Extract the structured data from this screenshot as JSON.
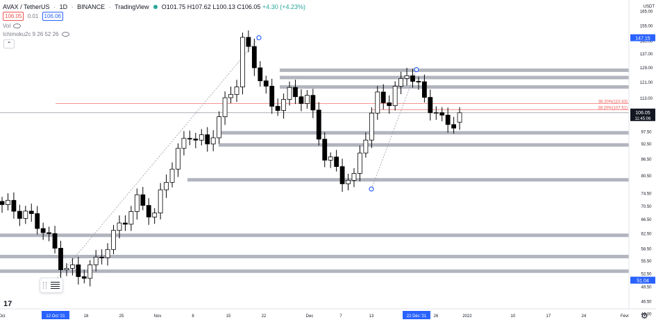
{
  "header": {
    "symbol": "AVAX / TetherUS",
    "interval": "1D",
    "exchange": "BINANCE",
    "source": "TradingView",
    "o_label": "O",
    "o": "101.75",
    "h_label": "H",
    "h": "107.62",
    "l_label": "L",
    "l": "100.13",
    "c_label": "C",
    "c": "106.05",
    "change": "+4.30 (+4.23%)",
    "bid": "106.05",
    "spread": "0.01",
    "ask": "106.06",
    "vol_label": "Vol",
    "indicator": "Ichimoku2c 9 26 52 26"
  },
  "price_axis": {
    "currency_top": "USDT",
    "ticks": [
      "165.00",
      "155.00",
      "145.00",
      "137.00",
      "129.00",
      "121.00",
      "113.00",
      "97.50",
      "92.50",
      "86.50",
      "80.50",
      "74.50",
      "70.50",
      "66.50",
      "62.50",
      "58.50",
      "55.50",
      "52.50",
      "49.50",
      "46.50",
      "44.00",
      "41.60"
    ],
    "label_high": "147.15",
    "label_price": "106.05",
    "label_timer": "11:45:06",
    "label_low": "51.04"
  },
  "time_axis": {
    "ticks": [
      "Oct",
      "12 Oct '21",
      "18",
      "25",
      "Nov",
      "8",
      "15",
      "22",
      "Dec",
      "7",
      "13",
      "22 Déc '21",
      "26",
      "2022",
      "10",
      "17",
      "24",
      "Févr"
    ],
    "highlighted": [
      "12 Oct '21",
      "22 Déc '21"
    ]
  },
  "fib": {
    "label_1": "38.20%(110.43)",
    "label_2": "38.20%(107.51)"
  },
  "colors": {
    "accent": "#2962ff",
    "bear": "#ef5350",
    "bull": "#26a69a",
    "candle": "#000000",
    "zone": "#b2b5be"
  },
  "chart_data": {
    "type": "candlestick",
    "symbol": "AVAX / TetherUS",
    "interval": "1D",
    "approx_ohlc_sample": [
      {
        "date": "12 Oct '21",
        "low": 51.04
      },
      {
        "date": "21 Nov '21",
        "high": 147.15
      },
      {
        "date": "13 Dec '21",
        "low": 76.0
      },
      {
        "date": "22 Dec '21",
        "high": 128.0
      },
      {
        "date": "last",
        "open": 101.75,
        "high": 107.62,
        "low": 100.13,
        "close": 106.05
      }
    ],
    "support_resistance_zones": [
      127.5,
      123.5,
      118.5,
      97.0,
      92.0,
      79.0,
      62.0,
      56.5,
      53.0
    ],
    "fib_levels": [
      110.43,
      107.51
    ],
    "ylim": [
      41.6,
      165.0
    ]
  },
  "icons": {
    "tv_logo": "tradingview-logo-icon",
    "settings": "gear-icon",
    "eye": "eye-icon",
    "collapse": "chevron-up-icon",
    "tool": "drag-handle-icon"
  },
  "tv_mark": "17",
  "collapse_glyph": "⌃",
  "gear_glyph": "⚙"
}
